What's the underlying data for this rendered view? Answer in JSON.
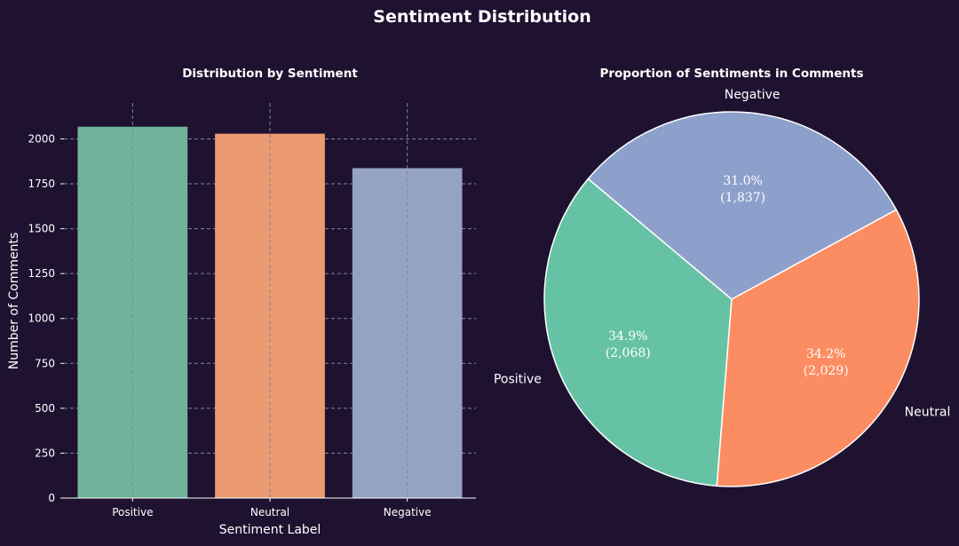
{
  "figure": {
    "title": "Sentiment Distribution",
    "background": "#1e1230"
  },
  "chart_data": [
    {
      "type": "bar",
      "title": "Distribution by Sentiment",
      "xlabel": "Sentiment Label",
      "ylabel": "Number of Comments",
      "categories": [
        "Positive",
        "Neutral",
        "Negative"
      ],
      "values": [
        2068,
        2029,
        1837
      ],
      "colors": [
        "#6fb39b",
        "#eb9a72",
        "#95a3c3"
      ],
      "ylim": [
        0,
        2200
      ],
      "yticks": [
        0,
        250,
        500,
        750,
        1000,
        1250,
        1500,
        1750,
        2000
      ],
      "ytick_labels": [
        "0",
        "250",
        "500",
        "750",
        "1000",
        "1250",
        "1500",
        "1750",
        "2000"
      ],
      "grid": true
    },
    {
      "type": "pie",
      "title": "Proportion of Sentiments in Comments",
      "labels": [
        "Positive",
        "Neutral",
        "Negative"
      ],
      "values": [
        2068,
        2029,
        1837
      ],
      "percent_labels": [
        "34.9%",
        "34.2%",
        "31.0%"
      ],
      "count_labels": [
        "(2,068)",
        "(2,029)",
        "(1,837)"
      ],
      "colors": [
        "#66c2a5",
        "#fc8d62",
        "#8da0cb"
      ],
      "edge_color": "#ffffff"
    }
  ]
}
